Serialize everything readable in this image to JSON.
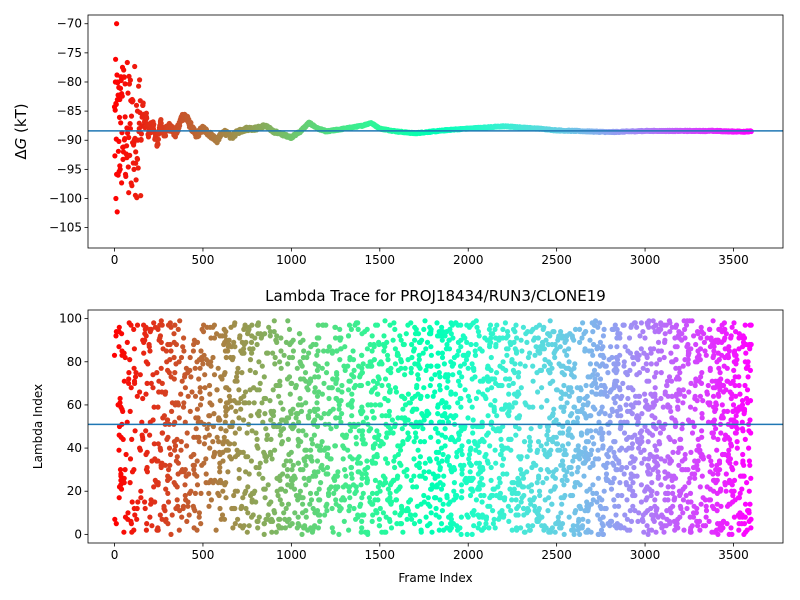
{
  "chart_data": [
    {
      "type": "scatter",
      "title": "",
      "xlabel": "",
      "ylabel": "ΔG (kT)",
      "ylabel_delta": "Δ",
      "ylabel_var": "G",
      "ylabel_unit": " (kT)",
      "xlim": [
        -150,
        3780
      ],
      "ylim": [
        -108.5,
        -68.5
      ],
      "xticks": [
        0,
        500,
        1000,
        1500,
        2000,
        2500,
        3000,
        3500
      ],
      "xtick_labels": [
        "0",
        "500",
        "1000",
        "1500",
        "2000",
        "2500",
        "3000",
        "3500"
      ],
      "yticks": [
        -70,
        -75,
        -80,
        -85,
        -90,
        -95,
        -100,
        -105
      ],
      "ytick_labels": [
        "−70",
        "−75",
        "−80",
        "−85",
        "−90",
        "−95",
        "−100",
        "−105"
      ],
      "hline": -88.4,
      "hline_color": "#1f77b4",
      "colormap": "rainbow (x increasing: red → violet)",
      "points_sampled": {
        "x": [
          5,
          8,
          10,
          12,
          15,
          18,
          20,
          25,
          30,
          35,
          40,
          45,
          50,
          55,
          60,
          70,
          80,
          90,
          100,
          110,
          120,
          130,
          140,
          150,
          160,
          170,
          180,
          190,
          200,
          220,
          240,
          260,
          280,
          300,
          320,
          340,
          360,
          380,
          400,
          430,
          460,
          500,
          540,
          580,
          620,
          660,
          700,
          750,
          800,
          850,
          900,
          950,
          1000,
          1050,
          1100,
          1150,
          1200,
          1300,
          1400,
          1450,
          1500,
          1600,
          1700,
          1800,
          1900,
          2000,
          2100,
          2200,
          2300,
          2400,
          2500,
          2600,
          2700,
          2800,
          2900,
          3000,
          3100,
          3200,
          3300,
          3400,
          3500,
          3600
        ],
        "y": [
          -80,
          -100,
          -89.8,
          -70,
          -102.3,
          -80,
          -96,
          -90.2,
          -83,
          -87,
          -82,
          -77.5,
          -92,
          -79.2,
          -86,
          -93,
          -99,
          -88,
          -83,
          -95,
          -92,
          -85,
          -88,
          -90,
          -84,
          -87,
          -86,
          -89,
          -88,
          -87.5,
          -91,
          -87,
          -89,
          -88,
          -87.5,
          -89,
          -88,
          -86,
          -85.8,
          -87.5,
          -89.2,
          -88,
          -89,
          -90,
          -88.5,
          -89.5,
          -88.5,
          -88,
          -88,
          -87.5,
          -88.5,
          -89,
          -89.5,
          -88.5,
          -87,
          -88,
          -88.5,
          -88,
          -87.5,
          -87,
          -88,
          -88.5,
          -88.8,
          -88.5,
          -88.2,
          -88,
          -87.8,
          -87.6,
          -87.8,
          -88,
          -88.3,
          -88.4,
          -88.5,
          -88.6,
          -88.5,
          -88.4,
          -88.4,
          -88.4,
          -88.4,
          -88.4,
          -88.5,
          -88.5
        ]
      }
    },
    {
      "type": "scatter",
      "title": "Lambda Trace for PROJ18434/RUN3/CLONE19",
      "xlabel": "Frame Index",
      "ylabel": "Lambda Index",
      "xlim": [
        -150,
        3780
      ],
      "ylim": [
        -4,
        104
      ],
      "xticks": [
        0,
        500,
        1000,
        1500,
        2000,
        2500,
        3000,
        3500
      ],
      "xtick_labels": [
        "0",
        "500",
        "1000",
        "1500",
        "2000",
        "2500",
        "3000",
        "3500"
      ],
      "yticks": [
        0,
        20,
        40,
        60,
        80,
        100
      ],
      "ytick_labels": [
        "0",
        "20",
        "40",
        "60",
        "80",
        "100"
      ],
      "hline": 51,
      "hline_color": "#1f77b4",
      "colormap": "rainbow (x increasing: red → violet)",
      "points_sampled": {
        "x": [
          0,
          10,
          20,
          40,
          60,
          80,
          100,
          130,
          160,
          200,
          250,
          300,
          350,
          400,
          450,
          500,
          560,
          620,
          680,
          740,
          800,
          860,
          920,
          980,
          1040,
          1100,
          1160,
          1220,
          1280,
          1340,
          1400,
          1460,
          1520,
          1580,
          1640,
          1700,
          1760,
          1820,
          1880,
          1940,
          2000,
          2060,
          2120,
          2180,
          2240,
          2300,
          2360,
          2420,
          2480,
          2540,
          2600,
          2660,
          2720,
          2780,
          2840,
          2900,
          2960,
          3020,
          3080,
          3140,
          3200,
          3260,
          3320,
          3380,
          3440,
          3500,
          3560,
          3600
        ],
        "y": [
          83,
          5,
          60,
          93,
          30,
          72,
          15,
          97,
          44,
          8,
          66,
          25,
          88,
          52,
          3,
          79,
          36,
          95,
          12,
          61,
          47,
          84,
          20,
          99,
          33,
          70,
          6,
          57,
          91,
          28,
          75,
          14,
          42,
          98,
          63,
          9,
          86,
          38,
          54,
          2,
          77,
          22,
          95,
          48,
          11,
          68,
          31,
          89,
          56,
          17,
          73,
          40,
          99,
          26,
          64,
          7,
          81,
          35,
          52,
          94,
          13,
          70,
          45,
          88,
          3,
          60,
          27,
          97
        ]
      }
    }
  ],
  "colors": {
    "hline": "#1f77b4",
    "axes": "#000000",
    "background": "#ffffff"
  }
}
